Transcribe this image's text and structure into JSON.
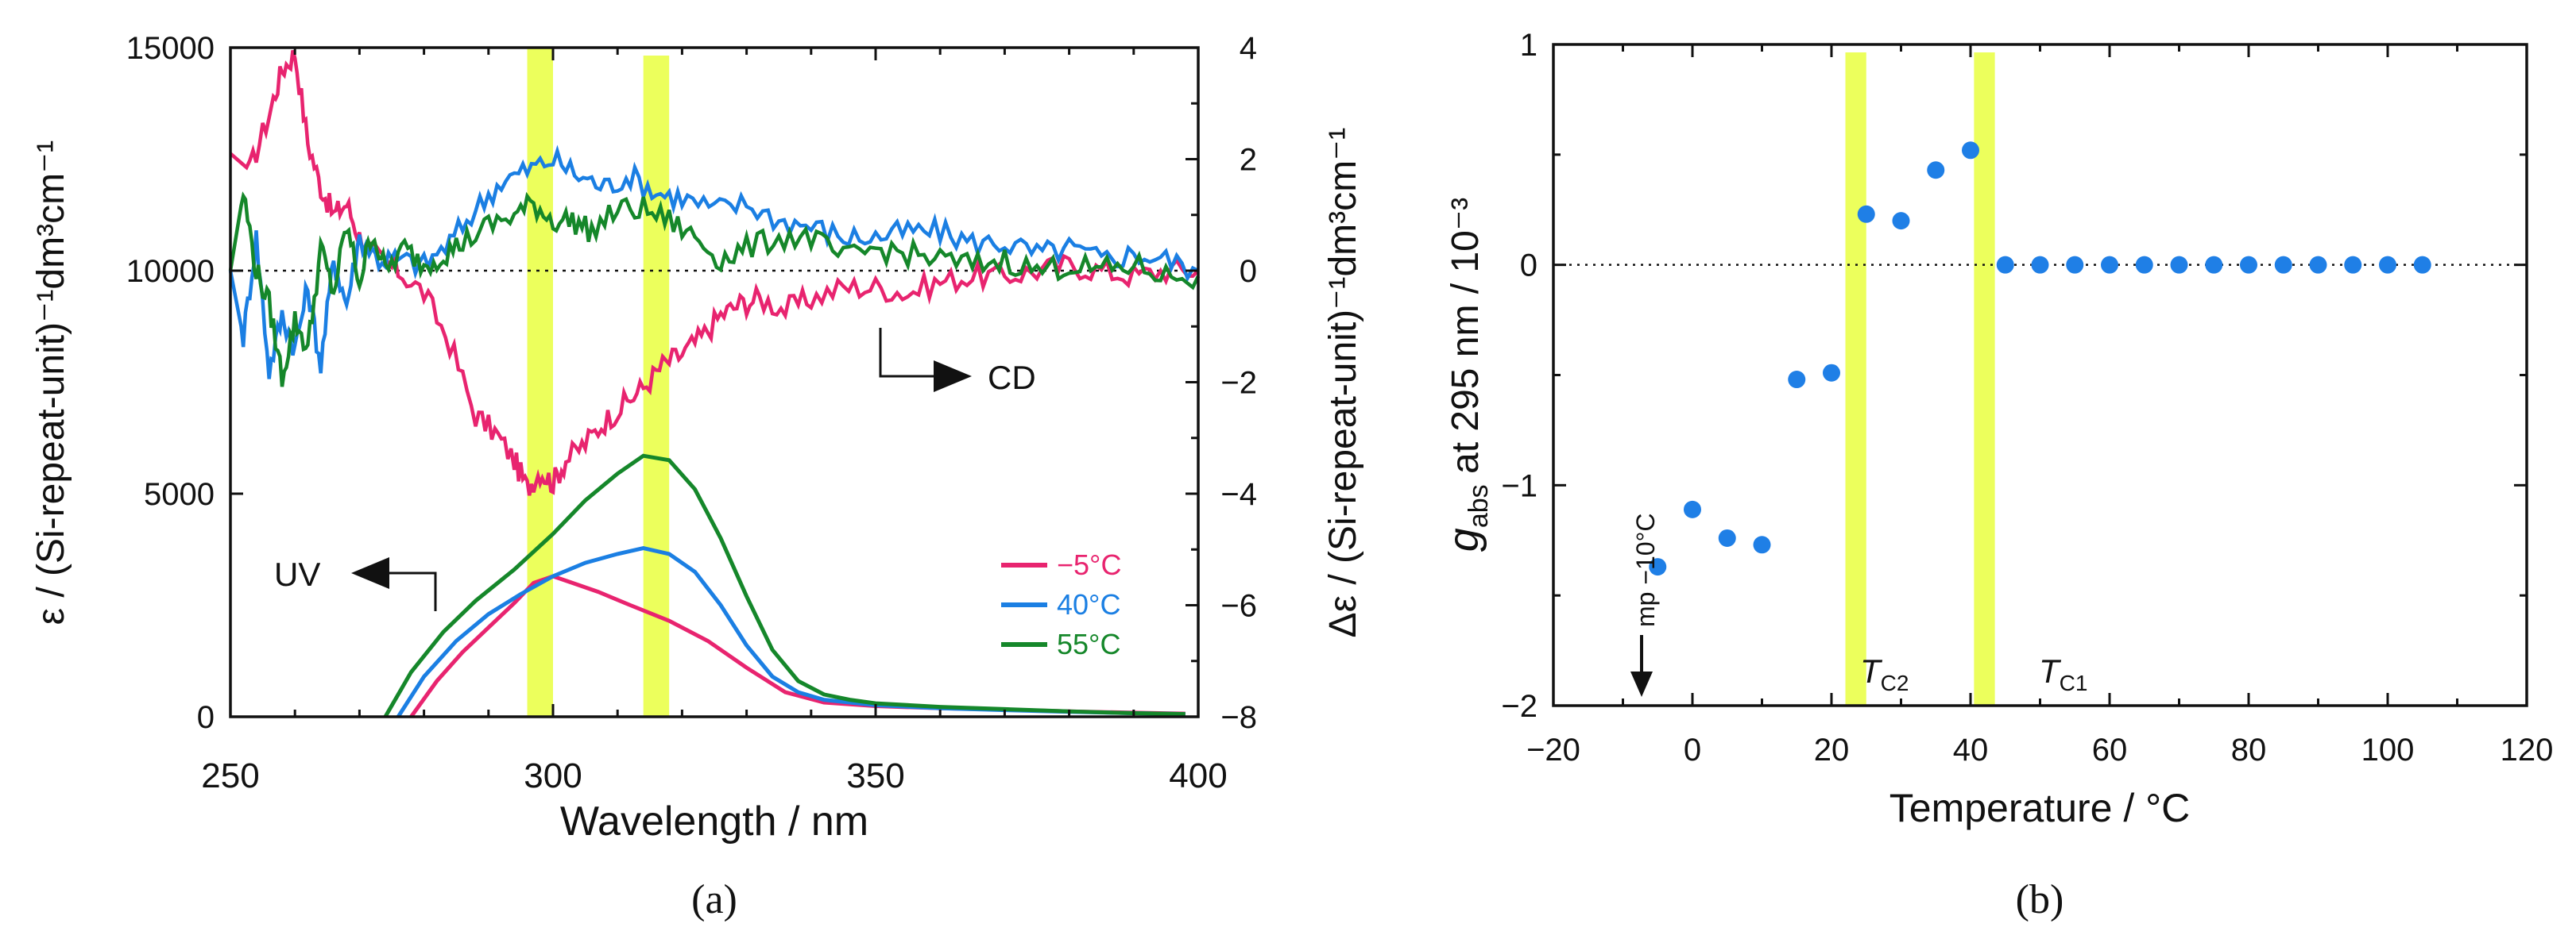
{
  "colors": {
    "minus5": "#e8246f",
    "c40": "#1b7fe3",
    "c55": "#15872a",
    "band": "#ecff5c",
    "points": "#1f7fe6",
    "axis": "#111111"
  },
  "chart_data": [
    {
      "type": "line",
      "panel_label": "(a)",
      "xlabel": "Wavelength / nm",
      "ylabel_left": "ε / (Si-repeat-unit)⁻¹dm³cm⁻¹",
      "ylabel_right": "Δε / (Si-repeat-unit)⁻¹dm³cm⁻¹",
      "xlim": [
        250,
        400
      ],
      "ylim_left": [
        0,
        15000
      ],
      "ylim_right": [
        -8,
        4
      ],
      "x_ticks": [
        "250",
        "300",
        "350",
        "400"
      ],
      "y_left_ticks": [
        "0",
        "5000",
        "10000",
        "15000"
      ],
      "y_right_ticks": [
        "−8",
        "−6",
        "−4",
        "−2",
        "0",
        "2",
        "4"
      ],
      "highlight_bands_nm": [
        [
          296,
          300
        ],
        [
          314,
          318
        ]
      ],
      "annotations": {
        "uv": "UV",
        "cd": "CD"
      },
      "legend": [
        "−5°C",
        "40°C",
        "55°C"
      ],
      "uv_series": [
        {
          "name": "−5°C",
          "x": [
            278,
            282,
            286,
            290,
            294,
            297,
            300,
            303,
            307,
            312,
            318,
            324,
            330,
            336,
            342,
            350,
            360,
            370,
            380,
            390,
            398
          ],
          "y": [
            0,
            800,
            1450,
            2000,
            2550,
            3000,
            3150,
            3000,
            2800,
            2500,
            2150,
            1700,
            1100,
            550,
            320,
            240,
            190,
            160,
            120,
            90,
            70
          ]
        },
        {
          "name": "40°C",
          "x": [
            276,
            280,
            285,
            290,
            295,
            300,
            305,
            310,
            314,
            318,
            322,
            326,
            330,
            334,
            338,
            342,
            350,
            360,
            370,
            380,
            390,
            398
          ],
          "y": [
            0,
            900,
            1700,
            2300,
            2750,
            3150,
            3450,
            3650,
            3780,
            3650,
            3250,
            2500,
            1600,
            900,
            550,
            380,
            260,
            190,
            150,
            110,
            80,
            60
          ]
        },
        {
          "name": "55°C",
          "x": [
            274,
            278,
            283,
            288,
            294,
            300,
            305,
            310,
            314,
            318,
            322,
            326,
            330,
            334,
            338,
            342,
            346,
            350,
            360,
            370,
            380,
            390,
            398
          ],
          "y": [
            0,
            1000,
            1900,
            2600,
            3300,
            4100,
            4850,
            5450,
            5850,
            5750,
            5100,
            4000,
            2700,
            1500,
            800,
            500,
            380,
            300,
            220,
            170,
            120,
            80,
            60
          ]
        }
      ],
      "cd_series": [
        {
          "name": "−5°C",
          "x": [
            250,
            253,
            256,
            258,
            260,
            262,
            264,
            266,
            268,
            270,
            273,
            276,
            280,
            284,
            288,
            291,
            294,
            296,
            298,
            300,
            302,
            305,
            308,
            311,
            314,
            317,
            320,
            323,
            326,
            329,
            332,
            336,
            340,
            345,
            350,
            355,
            360,
            365,
            370,
            375,
            380,
            385,
            390,
            395,
            400
          ],
          "y": [
            2.1,
            1.8,
            2.8,
            3.6,
            3.9,
            2.3,
            1.5,
            1.0,
            1.2,
            0.6,
            0.2,
            0.0,
            -0.4,
            -1.3,
            -2.6,
            -2.9,
            -3.4,
            -3.9,
            -3.6,
            -3.8,
            -3.4,
            -3.1,
            -2.7,
            -2.4,
            -2.1,
            -1.7,
            -1.5,
            -1.2,
            -0.8,
            -0.6,
            -0.5,
            -0.7,
            -0.5,
            -0.3,
            -0.3,
            -0.4,
            -0.2,
            -0.1,
            -0.1,
            0.0,
            0.1,
            0.0,
            -0.1,
            0.0,
            0.0
          ]
        },
        {
          "name": "40°C",
          "x": [
            250,
            252,
            254,
            256,
            258,
            260,
            262,
            264,
            266,
            268,
            270,
            273,
            276,
            280,
            284,
            288,
            292,
            296,
            300,
            304,
            308,
            312,
            316,
            320,
            325,
            330,
            335,
            340,
            345,
            350,
            355,
            360,
            365,
            370,
            375,
            380,
            385,
            390,
            395,
            400
          ],
          "y": [
            0.0,
            -1.2,
            0.6,
            -1.8,
            -0.8,
            -1.4,
            -0.3,
            -1.7,
            0.2,
            -0.6,
            0.6,
            0.2,
            0.2,
            0.1,
            0.5,
            1.1,
            1.6,
            1.8,
            2.0,
            1.7,
            1.5,
            1.7,
            1.4,
            1.3,
            1.1,
            1.2,
            0.9,
            0.8,
            0.6,
            0.6,
            0.7,
            0.7,
            0.5,
            0.5,
            0.3,
            0.4,
            0.2,
            0.3,
            0.2,
            0.0
          ]
        },
        {
          "name": "55°C",
          "x": [
            250,
            252,
            254,
            256,
            258,
            260,
            262,
            264,
            266,
            268,
            270,
            272,
            274,
            277,
            280,
            283,
            286,
            290,
            294,
            297,
            300,
            303,
            306,
            310,
            314,
            318,
            322,
            326,
            330,
            335,
            340,
            345,
            350,
            355,
            360,
            365,
            370,
            375,
            380,
            385,
            390,
            395,
            400
          ],
          "y": [
            0.0,
            1.4,
            0.0,
            -0.6,
            -1.9,
            -0.9,
            -1.4,
            0.4,
            -0.4,
            0.8,
            -0.2,
            0.7,
            0.0,
            0.4,
            0.1,
            0.3,
            0.5,
            0.8,
            1.0,
            1.2,
            0.9,
            0.9,
            0.7,
            1.1,
            1.1,
            0.9,
            0.6,
            0.2,
            0.4,
            0.6,
            0.6,
            0.2,
            0.4,
            0.3,
            0.2,
            0.1,
            0.2,
            0.0,
            0.1,
            0.0,
            0.1,
            -0.1,
            -0.1
          ]
        }
      ]
    },
    {
      "type": "scatter",
      "panel_label": "(b)",
      "xlabel": "Temperature / °C",
      "ylabel_main": "g",
      "ylabel_sub": "abs",
      "ylabel_rest": " at 295 nm / 10⁻³",
      "xlim": [
        -20,
        120
      ],
      "ylim": [
        -2,
        1
      ],
      "x_ticks": [
        "−20",
        "0",
        "20",
        "40",
        "60",
        "80",
        "100",
        "120"
      ],
      "y_ticks": [
        "−2",
        "−1",
        "0",
        "1"
      ],
      "highlight_bands_c": [
        [
          22,
          25
        ],
        [
          40.5,
          43.5
        ]
      ],
      "annotations": {
        "mp": "mp −10°C",
        "tc2_main": "T",
        "tc2_sub": "C2",
        "tc1_main": "T",
        "tc1_sub": "C1"
      },
      "x": [
        -5,
        0,
        5,
        10,
        15,
        20,
        25,
        30,
        35,
        40,
        45,
        50,
        55,
        60,
        65,
        70,
        75,
        80,
        85,
        90,
        95,
        100,
        105
      ],
      "y": [
        -1.37,
        -1.11,
        -1.24,
        -1.27,
        -0.52,
        -0.49,
        0.23,
        0.2,
        0.43,
        0.52,
        0,
        0,
        0,
        0,
        0,
        0,
        0,
        0,
        0,
        0,
        0,
        0,
        0
      ]
    }
  ]
}
